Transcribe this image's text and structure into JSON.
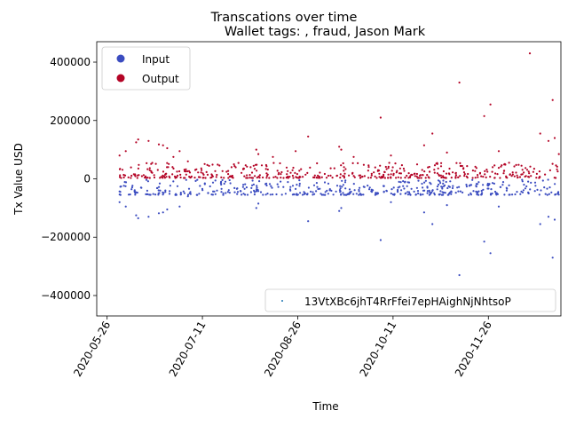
{
  "chart_data": {
    "type": "scatter",
    "suptitle": "Transcations over time",
    "title": "Wallet tags: , fraud, Jason Mark",
    "xlabel": "Time",
    "ylabel": "Tx Value USD",
    "x_range": [
      "2020-05-21",
      "2020-12-31"
    ],
    "ylim": [
      -470000,
      470000
    ],
    "x_ticks": [
      "2020-05-26",
      "2020-07-11",
      "2020-08-26",
      "2020-10-11",
      "2020-11-26"
    ],
    "y_ticks": [
      -400000,
      -200000,
      0,
      200000,
      400000
    ],
    "y_tick_labels": [
      "−400000",
      "−200000",
      "0",
      "200000",
      "400000"
    ],
    "grid": false,
    "legend_top_left": {
      "placement": "upper-left",
      "entries": [
        {
          "label": "Input",
          "color": "#3b4cc0"
        },
        {
          "label": "Output",
          "color": "#b40426"
        }
      ]
    },
    "legend_bottom_right": {
      "placement": "lower-right",
      "entries": [
        {
          "label": "13VtXBc6jhT4RrFfei7epHAighNjNhtsoP",
          "color": "#1f77b4"
        }
      ]
    },
    "series": [
      {
        "name": "Output",
        "color": "#b40426",
        "points": [
          [
            "2020-06-01",
            80000
          ],
          [
            "2020-06-04",
            95000
          ],
          [
            "2020-06-09",
            125000
          ],
          [
            "2020-06-10",
            135000
          ],
          [
            "2020-06-15",
            130000
          ],
          [
            "2020-06-20",
            118000
          ],
          [
            "2020-06-22",
            115000
          ],
          [
            "2020-06-24",
            105000
          ],
          [
            "2020-06-27",
            75000
          ],
          [
            "2020-06-30",
            95000
          ],
          [
            "2020-07-04",
            60000
          ],
          [
            "2020-08-06",
            100000
          ],
          [
            "2020-08-07",
            85000
          ],
          [
            "2020-08-14",
            75000
          ],
          [
            "2020-08-25",
            95000
          ],
          [
            "2020-08-31",
            145000
          ],
          [
            "2020-09-15",
            110000
          ],
          [
            "2020-09-16",
            100000
          ],
          [
            "2020-09-22",
            75000
          ],
          [
            "2020-10-05",
            210000
          ],
          [
            "2020-10-10",
            80000
          ],
          [
            "2020-10-26",
            115000
          ],
          [
            "2020-10-30",
            155000
          ],
          [
            "2020-11-06",
            90000
          ],
          [
            "2020-11-12",
            330000
          ],
          [
            "2020-11-24",
            215000
          ],
          [
            "2020-11-27",
            255000
          ],
          [
            "2020-12-01",
            95000
          ],
          [
            "2020-12-06",
            55000
          ],
          [
            "2020-12-12",
            45000
          ],
          [
            "2020-12-16",
            430000
          ],
          [
            "2020-12-21",
            155000
          ],
          [
            "2020-12-25",
            130000
          ],
          [
            "2020-12-27",
            270000
          ],
          [
            "2020-12-28",
            140000
          ],
          [
            "2020-12-30",
            85000
          ]
        ],
        "dense_bands": [
          {
            "x_start": "2020-06-01",
            "x_end": "2020-12-30",
            "count": 480,
            "y_min": 3000,
            "y_max": 55000
          }
        ]
      },
      {
        "name": "Input",
        "color": "#3b4cc0",
        "points": [
          [
            "2020-06-01",
            -80000
          ],
          [
            "2020-06-04",
            -95000
          ],
          [
            "2020-06-09",
            -125000
          ],
          [
            "2020-06-10",
            -135000
          ],
          [
            "2020-06-15",
            -130000
          ],
          [
            "2020-06-20",
            -118000
          ],
          [
            "2020-06-22",
            -115000
          ],
          [
            "2020-06-24",
            -105000
          ],
          [
            "2020-06-30",
            -95000
          ],
          [
            "2020-07-04",
            -60000
          ],
          [
            "2020-08-06",
            -100000
          ],
          [
            "2020-08-07",
            -85000
          ],
          [
            "2020-08-31",
            -145000
          ],
          [
            "2020-09-15",
            -110000
          ],
          [
            "2020-09-16",
            -100000
          ],
          [
            "2020-10-05",
            -210000
          ],
          [
            "2020-10-10",
            -80000
          ],
          [
            "2020-10-26",
            -115000
          ],
          [
            "2020-10-30",
            -155000
          ],
          [
            "2020-11-06",
            -90000
          ],
          [
            "2020-11-12",
            -330000
          ],
          [
            "2020-11-24",
            -215000
          ],
          [
            "2020-11-27",
            -255000
          ],
          [
            "2020-12-01",
            -95000
          ],
          [
            "2020-12-21",
            -155000
          ],
          [
            "2020-12-25",
            -130000
          ],
          [
            "2020-12-27",
            -270000
          ],
          [
            "2020-12-28",
            -140000
          ]
        ],
        "dense_bands": [
          {
            "x_start": "2020-06-01",
            "x_end": "2020-12-30",
            "count": 480,
            "y_min": -55000,
            "y_max": -3000
          }
        ]
      }
    ]
  }
}
